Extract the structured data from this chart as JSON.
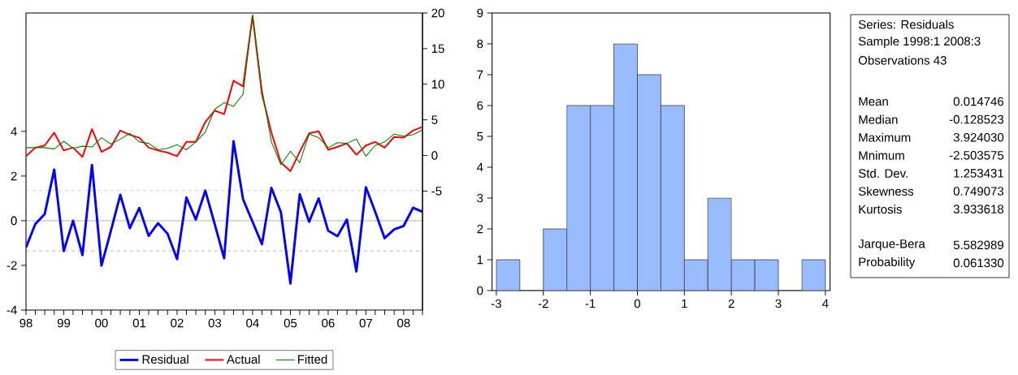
{
  "chart_data": [
    {
      "type": "line",
      "x": [
        "1998-01",
        "1998-04",
        "1998-07",
        "1998-10",
        "1999-01",
        "1999-04",
        "1999-07",
        "1999-10",
        "2000-01",
        "2000-04",
        "2000-07",
        "2000-10",
        "2001-01",
        "2001-04",
        "2001-07",
        "2001-10",
        "2002-01",
        "2002-04",
        "2002-07",
        "2002-10",
        "2003-01",
        "2003-04",
        "2003-07",
        "2003-10",
        "2004-01",
        "2004-04",
        "2004-07",
        "2004-10",
        "2005-01",
        "2005-04",
        "2005-07",
        "2005-10",
        "2006-01",
        "2006-04",
        "2006-07",
        "2006-10",
        "2007-01",
        "2007-04",
        "2007-07",
        "2007-10",
        "2008-01",
        "2008-04",
        "2008-07"
      ],
      "xlim": [
        "1998-01",
        "2008-07"
      ],
      "xticks": [
        {
          "value": "1998-01",
          "label": "98"
        },
        {
          "value": "1998-04",
          "label": null
        },
        {
          "value": "1998-07",
          "label": null
        },
        {
          "value": "1998-10",
          "label": null
        },
        {
          "value": "1999-01",
          "label": "99"
        },
        {
          "value": "1999-04",
          "label": null
        },
        {
          "value": "1999-07",
          "label": null
        },
        {
          "value": "1999-10",
          "label": null
        },
        {
          "value": "2000-01",
          "label": "00"
        },
        {
          "value": "2000-04",
          "label": null
        },
        {
          "value": "2000-07",
          "label": null
        },
        {
          "value": "2000-10",
          "label": null
        },
        {
          "value": "2001-01",
          "label": "01"
        },
        {
          "value": "2001-04",
          "label": null
        },
        {
          "value": "2001-07",
          "label": null
        },
        {
          "value": "2001-10",
          "label": null
        },
        {
          "value": "2002-01",
          "label": "02"
        },
        {
          "value": "2002-04",
          "label": null
        },
        {
          "value": "2002-07",
          "label": null
        },
        {
          "value": "2002-10",
          "label": null
        },
        {
          "value": "2003-01",
          "label": "03"
        },
        {
          "value": "2003-04",
          "label": null
        },
        {
          "value": "2003-07",
          "label": null
        },
        {
          "value": "2003-10",
          "label": null
        },
        {
          "value": "2004-01",
          "label": "04"
        },
        {
          "value": "2004-04",
          "label": null
        },
        {
          "value": "2004-07",
          "label": null
        },
        {
          "value": "2004-10",
          "label": null
        },
        {
          "value": "2005-01",
          "label": "05"
        },
        {
          "value": "2005-04",
          "label": null
        },
        {
          "value": "2005-07",
          "label": null
        },
        {
          "value": "2005-10",
          "label": null
        },
        {
          "value": "2006-01",
          "label": "06"
        },
        {
          "value": "2006-04",
          "label": null
        },
        {
          "value": "2006-07",
          "label": null
        },
        {
          "value": "2006-10",
          "label": null
        },
        {
          "value": "2007-01",
          "label": "07"
        },
        {
          "value": "2007-04",
          "label": null
        },
        {
          "value": "2007-07",
          "label": null
        },
        {
          "value": "2007-10",
          "label": null
        },
        {
          "value": "2008-01",
          "label": "08"
        },
        {
          "value": "2008-04",
          "label": null
        },
        {
          "value": "2008-07",
          "label": null
        }
      ],
      "ylim": [
        -4,
        9.3
      ],
      "yticks": [
        -4,
        -2,
        0,
        2,
        4
      ],
      "y2lim": [
        -21.7,
        20
      ],
      "y2ticks": [
        -5,
        0,
        5,
        10,
        15,
        20
      ],
      "legend": "bottom",
      "ref_lines": [
        {
          "axis": "y",
          "value": 1.35,
          "color": "#808080",
          "line_style": "dashed"
        },
        {
          "axis": "y",
          "value": 0,
          "color": "#707070",
          "line_style": "solid"
        },
        {
          "axis": "y",
          "value": -1.35,
          "color": "#808080",
          "line_style": "dashed"
        }
      ],
      "series": [
        {
          "name": "Residual",
          "color": "#0000ff",
          "values": [
            -1.2,
            -0.15,
            0.3,
            2.29,
            -1.36,
            0.0,
            -1.54,
            2.5,
            -2.01,
            -0.45,
            1.16,
            -0.33,
            0.57,
            -0.68,
            -0.11,
            -0.58,
            -1.72,
            1.04,
            0.05,
            1.35,
            -0.17,
            -1.68,
            3.56,
            0.96,
            -0.05,
            -1.05,
            1.47,
            0.38,
            -2.81,
            1.19,
            -0.05,
            1.0,
            -0.45,
            -0.69,
            0.05,
            -2.27,
            1.5,
            0.4,
            -0.78,
            -0.39,
            -0.23,
            0.58,
            0.4
          ]
        },
        {
          "name": "Actual",
          "color": "#ff0000",
          "axis": "y2",
          "values": [
            -0.1,
            1.1,
            1.4,
            3.2,
            0.7,
            1.1,
            -0.2,
            3.7,
            0.5,
            1.2,
            3.5,
            2.9,
            2.5,
            1.1,
            0.7,
            0.4,
            -0.1,
            1.9,
            1.9,
            4.7,
            6.3,
            5.8,
            10.5,
            9.7,
            19.6,
            8.6,
            3.2,
            -1.0,
            -2.2,
            0.5,
            3.1,
            3.4,
            0.8,
            1.2,
            1.7,
            0.1,
            1.4,
            1.9,
            1.1,
            2.6,
            2.5,
            3.5,
            4.0
          ]
        },
        {
          "name": "Fitted",
          "color": "#008000",
          "axis": "y2",
          "values": [
            1.1,
            1.1,
            1.1,
            0.9,
            2.0,
            1.0,
            1.3,
            1.2,
            2.5,
            1.6,
            2.3,
            3.1,
            1.9,
            1.7,
            0.8,
            1.0,
            1.5,
            0.8,
            1.9,
            3.3,
            6.5,
            7.4,
            6.9,
            8.6,
            19.7,
            9.3,
            1.9,
            -1.3,
            0.6,
            -1.0,
            3.0,
            2.5,
            1.1,
            1.8,
            1.7,
            2.3,
            -0.1,
            1.4,
            1.9,
            3.0,
            2.7,
            2.9,
            3.6
          ]
        }
      ]
    },
    {
      "type": "histogram",
      "bins": [
        -3,
        -2.5,
        -2,
        -1.5,
        -1,
        -0.5,
        0,
        0.5,
        1,
        1.5,
        2,
        2.5,
        3,
        3.5,
        4
      ],
      "values": [
        1,
        0,
        2,
        6,
        6,
        8,
        7,
        6,
        1,
        3,
        1,
        1,
        0,
        1
      ],
      "color": "#99bbff",
      "xlim": [
        -3.09,
        4.1
      ],
      "xticks": [
        -3,
        -2,
        -1,
        0,
        1,
        2,
        3,
        4
      ],
      "ylim": [
        0,
        9
      ],
      "yticks": [
        0,
        1,
        2,
        3,
        4,
        5,
        6,
        7,
        8,
        9
      ]
    },
    {
      "type": "other",
      "annotations": [
        "Series: Residuals",
        "Sample 1998:1 2008:3",
        "Observations 43"
      ],
      "categories": [
        "Mean",
        "Median",
        "Maximum",
        "Mnimum",
        "Std. Dev.",
        "Skewness",
        "Kurtosis",
        null,
        "Jarque-Bera",
        "Probability"
      ],
      "value_labels": [
        "0.014746",
        "-0.128523",
        "3.924030",
        "-2.503575",
        "1.253431",
        "0.749073",
        "3.933618",
        null,
        "5.582989",
        "0.061330"
      ]
    }
  ]
}
